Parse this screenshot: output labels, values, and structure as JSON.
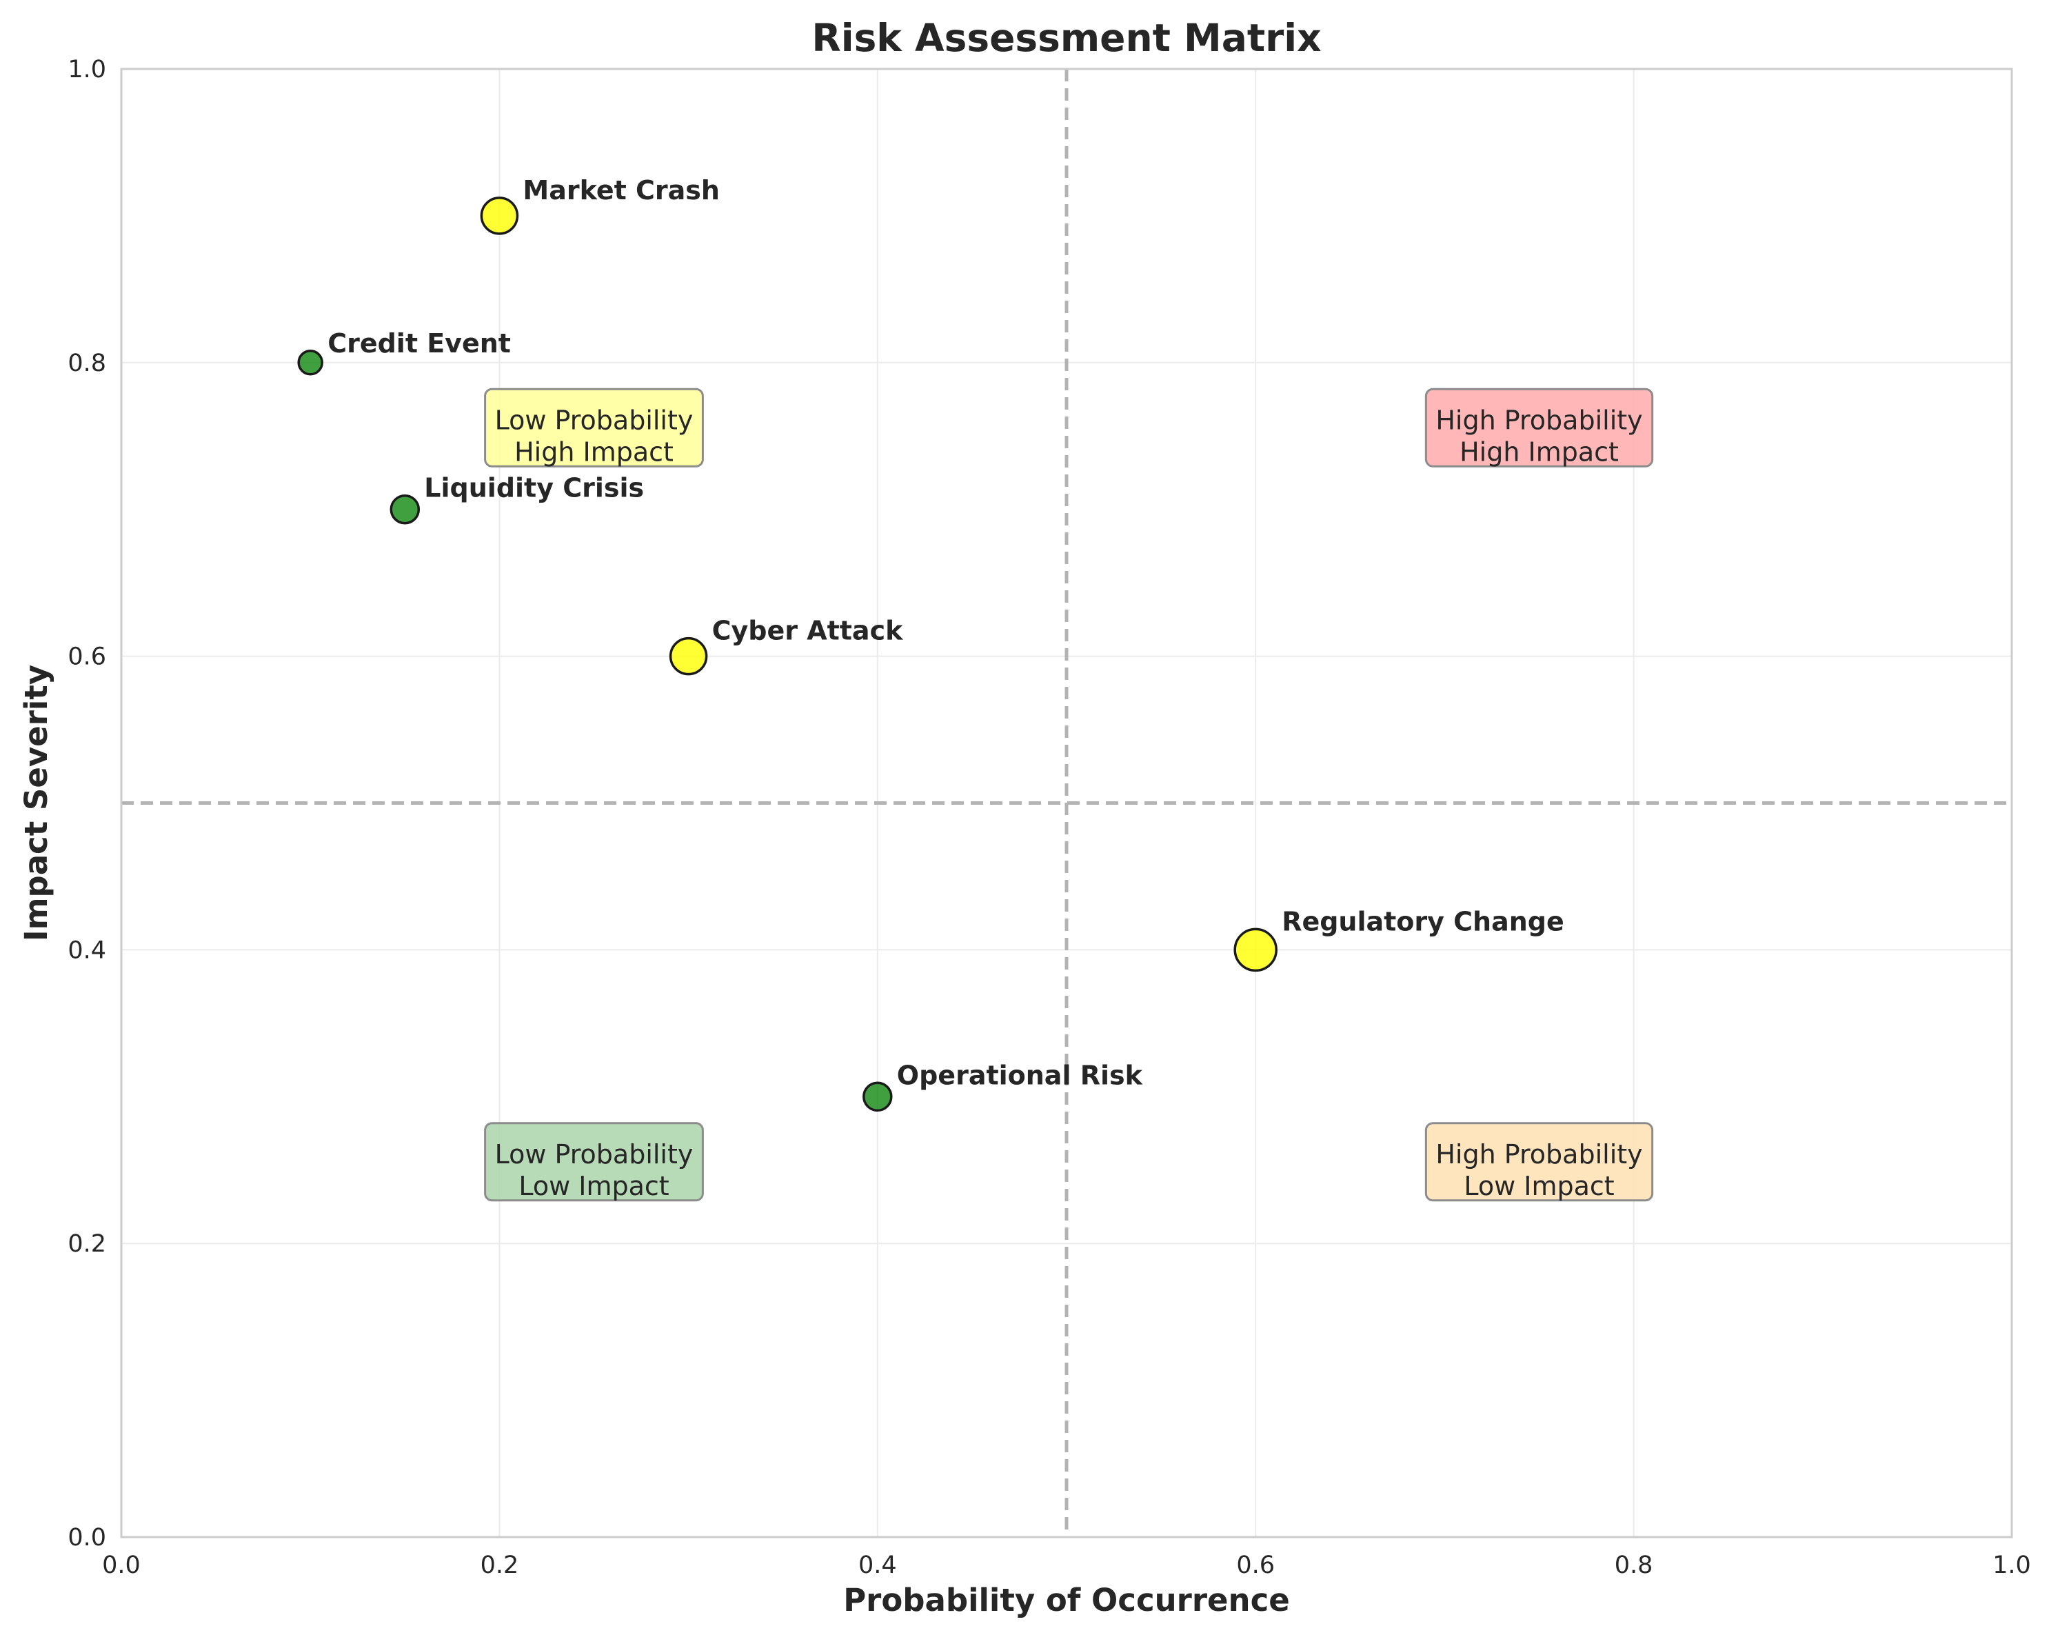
{
  "chart_data": {
    "type": "scatter",
    "title": "Risk Assessment Matrix",
    "xlabel": "Probability of Occurrence",
    "ylabel": "Impact Severity",
    "xlim": [
      0,
      1
    ],
    "ylim": [
      0,
      1
    ],
    "x_ticks": [
      "0.0",
      "0.2",
      "0.4",
      "0.6",
      "0.8",
      "1.0"
    ],
    "y_ticks": [
      "0.0",
      "0.2",
      "0.4",
      "0.6",
      "0.8",
      "1.0"
    ],
    "grid": true,
    "threshold_x": 0.5,
    "threshold_y": 0.5,
    "points": [
      {
        "label": "Market Crash",
        "x": 0.2,
        "y": 0.9,
        "color": "#ffff00",
        "relative_size": 1.3
      },
      {
        "label": "Credit Event",
        "x": 0.1,
        "y": 0.8,
        "color": "#008000",
        "relative_size": 0.85
      },
      {
        "label": "Liquidity Crisis",
        "x": 0.15,
        "y": 0.7,
        "color": "#008000",
        "relative_size": 1.0
      },
      {
        "label": "Cyber Attack",
        "x": 0.3,
        "y": 0.6,
        "color": "#ffff00",
        "relative_size": 1.3
      },
      {
        "label": "Regulatory Change",
        "x": 0.6,
        "y": 0.4,
        "color": "#ffff00",
        "relative_size": 1.5
      },
      {
        "label": "Operational Risk",
        "x": 0.4,
        "y": 0.3,
        "color": "#008000",
        "relative_size": 1.0
      }
    ],
    "quadrants": [
      {
        "line1": "Low Probability",
        "line2": "High Impact",
        "x": 0.25,
        "y": 0.75,
        "color": "#ffff99"
      },
      {
        "line1": "High Probability",
        "line2": "High Impact",
        "x": 0.75,
        "y": 0.75,
        "color": "#ffaaaa"
      },
      {
        "line1": "Low Probability",
        "line2": "Low Impact",
        "x": 0.25,
        "y": 0.25,
        "color": "#aad4aa"
      },
      {
        "line1": "High Probability",
        "line2": "Low Impact",
        "x": 0.75,
        "y": 0.25,
        "color": "#ffe0b3"
      }
    ]
  }
}
